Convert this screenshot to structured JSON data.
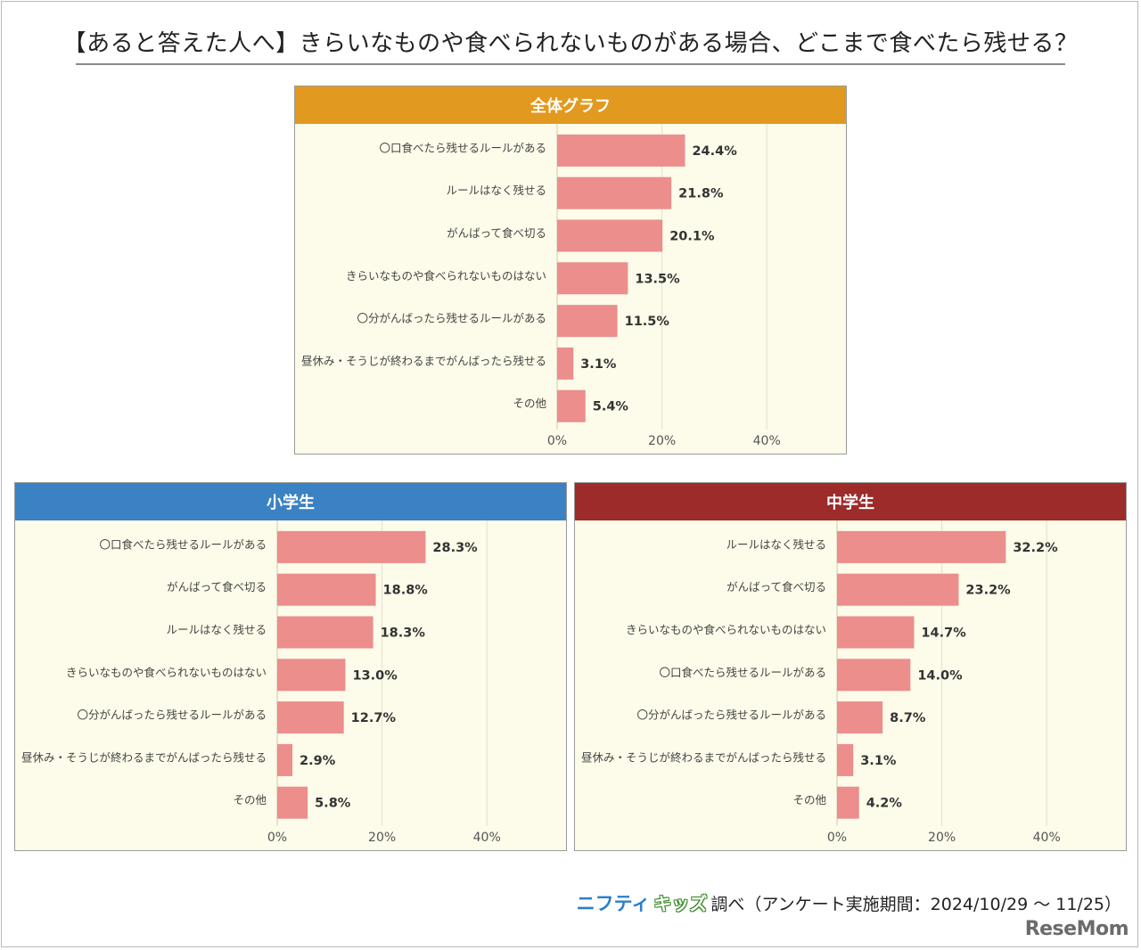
{
  "title": "【あると答えた人へ】きらいなものや食べられないものがある場合、どこまで食べたら残せる？",
  "colors": {
    "bar": "#eb8e8c",
    "panel_bg": "#fdfbe9",
    "header_all": "#e19a1f",
    "header_elementary": "#3a82c4",
    "header_junior": "#9c2b2a",
    "grid": "#e3dfc9"
  },
  "chart_data": [
    {
      "type": "bar",
      "orientation": "horizontal",
      "title": "全体グラフ",
      "categories": [
        "〇口食べたら残せるルールがある",
        "ルールはなく残せる",
        "がんばって食べ切る",
        "きらいなものや食べられないものはない",
        "〇分がんばったら残せるルールがある",
        "昼休み・そうじが終わるまでがんばったら残せる",
        "その他"
      ],
      "values": [
        24.4,
        21.8,
        20.1,
        13.5,
        11.5,
        3.1,
        5.4
      ],
      "value_labels": [
        "24.4%",
        "21.8%",
        "20.1%",
        "13.5%",
        "11.5%",
        "3.1%",
        "5.4%"
      ],
      "xlim": [
        0,
        50
      ],
      "ticks": [
        0,
        20,
        40
      ],
      "tick_labels": [
        "0%",
        "20%",
        "40%"
      ],
      "grid": true
    },
    {
      "type": "bar",
      "orientation": "horizontal",
      "title": "小学生",
      "categories": [
        "〇口食べたら残せるルールがある",
        "がんばって食べ切る",
        "ルールはなく残せる",
        "きらいなものや食べられないものはない",
        "〇分がんばったら残せるルールがある",
        "昼休み・そうじが終わるまでがんばったら残せる",
        "その他"
      ],
      "values": [
        28.3,
        18.8,
        18.3,
        13.0,
        12.7,
        2.9,
        5.8
      ],
      "value_labels": [
        "28.3%",
        "18.8%",
        "18.3%",
        "13.0%",
        "12.7%",
        "2.9%",
        "5.8%"
      ],
      "xlim": [
        0,
        50
      ],
      "ticks": [
        0,
        20,
        40
      ],
      "tick_labels": [
        "0%",
        "20%",
        "40%"
      ],
      "grid": true
    },
    {
      "type": "bar",
      "orientation": "horizontal",
      "title": "中学生",
      "categories": [
        "ルールはなく残せる",
        "がんばって食べ切る",
        "きらいなものや食べられないものはない",
        "〇口食べたら残せるルールがある",
        "〇分がんばったら残せるルールがある",
        "昼休み・そうじが終わるまでがんばったら残せる",
        "その他"
      ],
      "values": [
        32.2,
        23.2,
        14.7,
        14.0,
        8.7,
        3.1,
        4.2
      ],
      "value_labels": [
        "32.2%",
        "23.2%",
        "14.7%",
        "14.0%",
        "8.7%",
        "3.1%",
        "4.2%"
      ],
      "xlim": [
        0,
        50
      ],
      "ticks": [
        0,
        20,
        40
      ],
      "tick_labels": [
        "0%",
        "20%",
        "40%"
      ],
      "grid": true
    }
  ],
  "footer": {
    "brand_part1": "ニフティ",
    "brand_part2": "キッズ",
    "text": "調べ（アンケート実施期間：2024/10/29 ～ 11/25）"
  },
  "logo": "ReseMom"
}
